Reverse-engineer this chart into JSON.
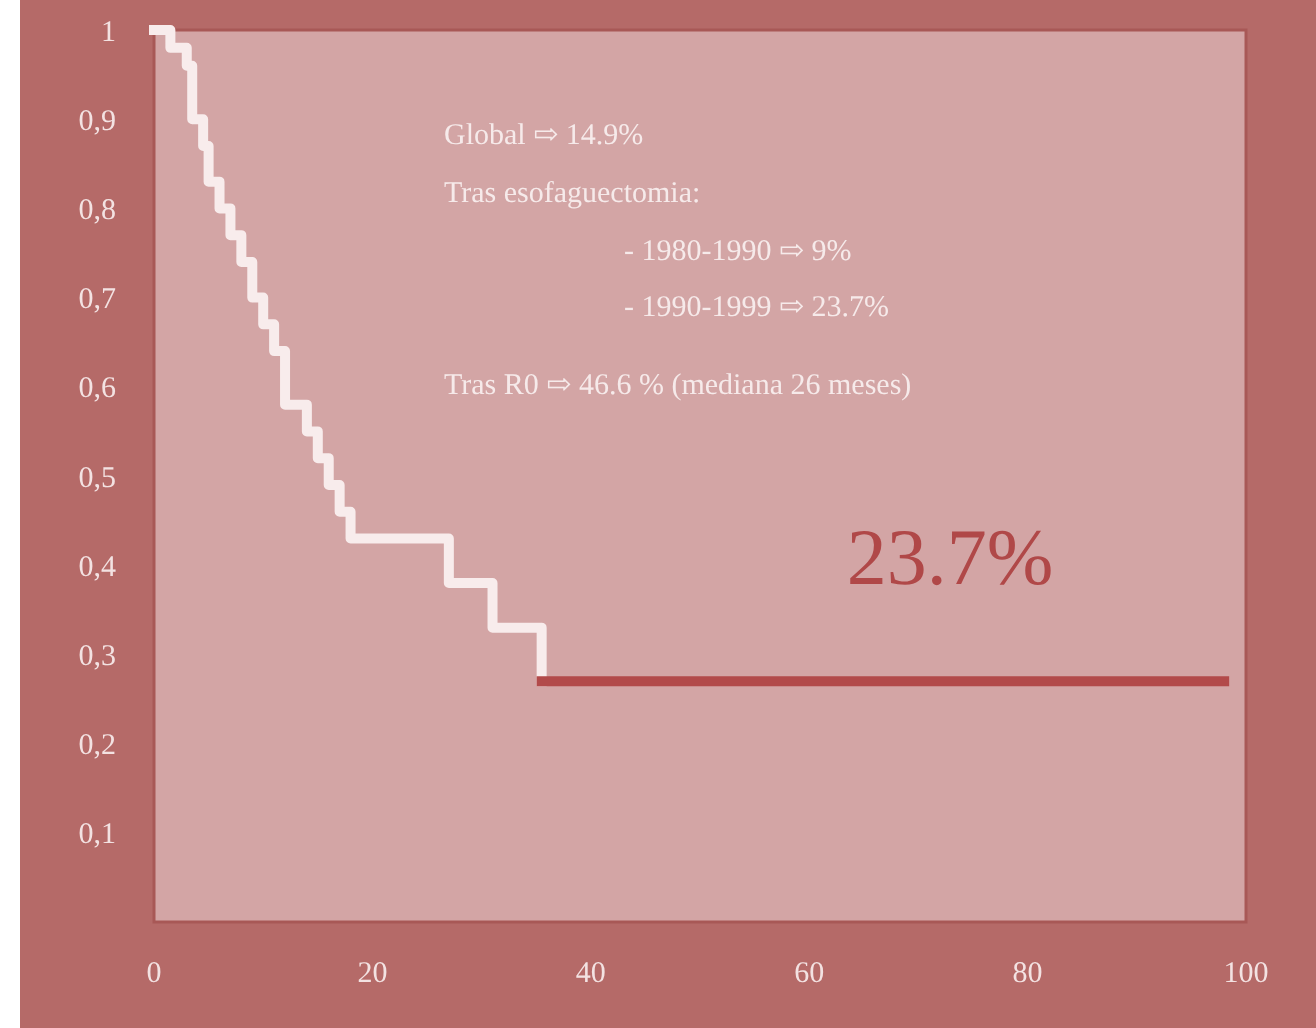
{
  "chart_data": {
    "type": "step",
    "xlim": [
      0,
      100
    ],
    "ylim": [
      0,
      1
    ],
    "xticks": [
      0,
      20,
      40,
      60,
      80,
      100
    ],
    "yticks": [
      {
        "value": 0.1,
        "label": "0,1"
      },
      {
        "value": 0.2,
        "label": "0,2"
      },
      {
        "value": 0.3,
        "label": "0,3"
      },
      {
        "value": 0.4,
        "label": "0,4"
      },
      {
        "value": 0.5,
        "label": "0,5"
      },
      {
        "value": 0.6,
        "label": "0,6"
      },
      {
        "value": 0.7,
        "label": "0,7"
      },
      {
        "value": 0.8,
        "label": "0,8"
      },
      {
        "value": 0.9,
        "label": "0,9"
      },
      1
    ],
    "series": [
      {
        "color": "#f8ecec",
        "x": [
          0,
          1.5,
          3,
          3.5,
          4.5,
          5,
          6,
          7,
          8,
          9,
          10,
          11,
          12,
          14,
          15,
          16,
          17,
          18,
          27,
          31,
          35.5
        ],
        "values": [
          1,
          0.98,
          0.96,
          0.9,
          0.87,
          0.83,
          0.8,
          0.77,
          0.74,
          0.7,
          0.67,
          0.64,
          0.58,
          0.55,
          0.52,
          0.49,
          0.46,
          0.43,
          0.38,
          0.33,
          0.27
        ]
      },
      {
        "color": "#b24a4a",
        "x": [
          35.5,
          98
        ],
        "values": [
          0.27,
          0.27
        ]
      }
    ],
    "annotations": [
      "Global ⇨ 14.9%",
      "Tras esofaguectomia:",
      "- 1980-1990 ⇨ 9%",
      "- 1990-1999 ⇨ 23.7%",
      "Tras R0  ⇨ 46.6 % (mediana 26 meses)",
      "23.7%"
    ]
  }
}
